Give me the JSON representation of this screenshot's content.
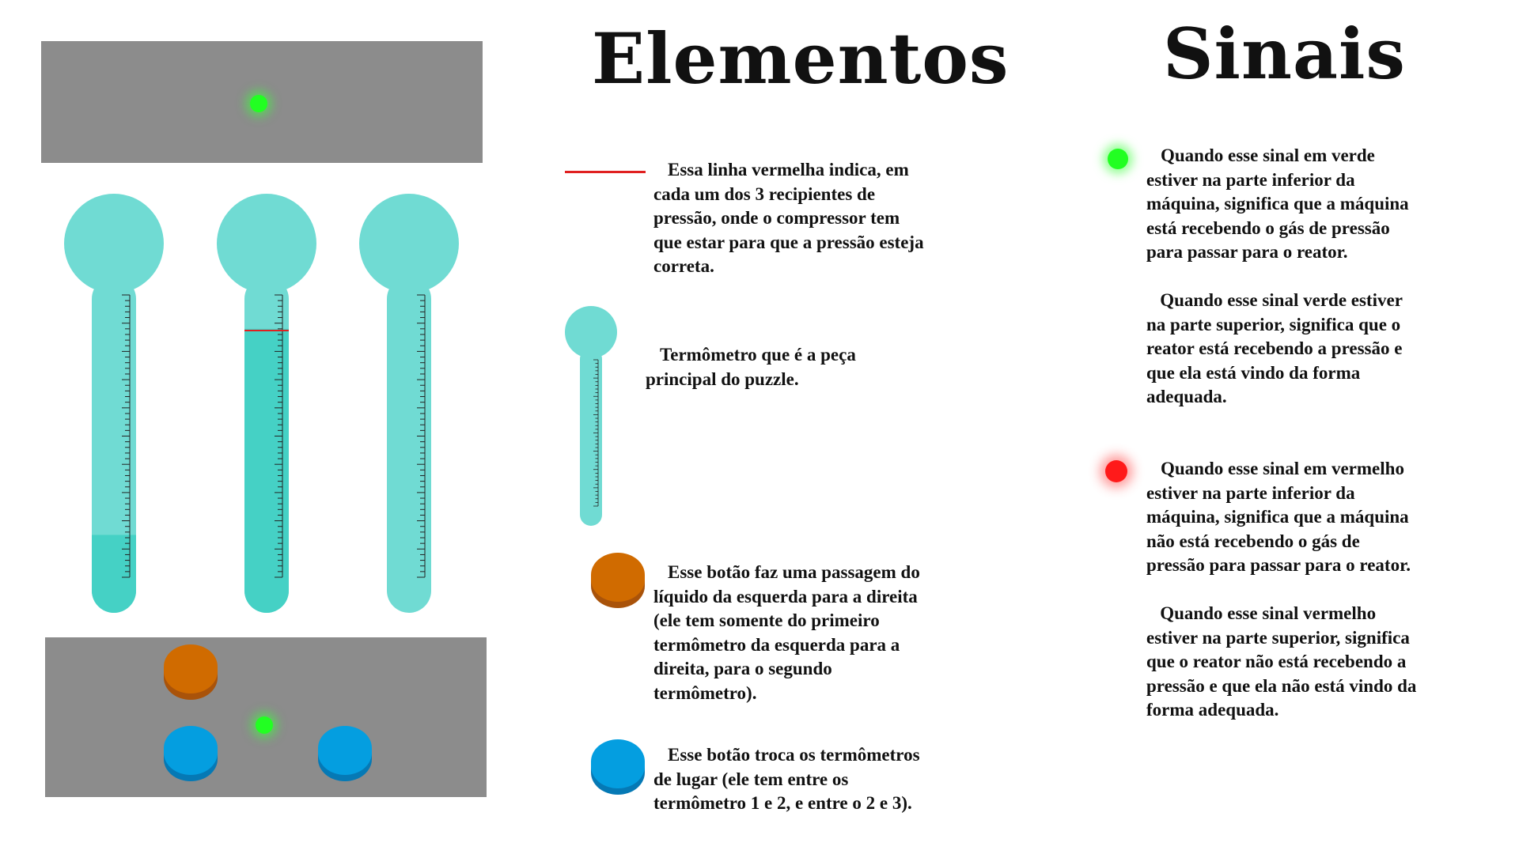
{
  "headings": {
    "elements": "Elementos",
    "signals": "Sinais"
  },
  "colors": {
    "panel": "#8c8c8c",
    "thermometer_light": "#70dbd3",
    "thermometer_liquid": "#45d1c5",
    "target_line": "#e02020",
    "signal_green": "#22ff22",
    "signal_red": "#ff1a1a",
    "button_orange": "#d06b00",
    "button_blue": "#049ee0"
  },
  "machine": {
    "thermometers": [
      {
        "fill_level": 0.15,
        "has_target_line": false
      },
      {
        "fill_level": 0.88,
        "has_target_line": true
      },
      {
        "fill_level": 0.0,
        "has_target_line": false
      }
    ],
    "top_signal": "green",
    "bottom_signal": "green",
    "buttons": [
      "orange",
      "blue",
      "blue"
    ]
  },
  "elements": {
    "red_line_text": "Essa linha vermelha indica, em\ncada um dos 3 recipientes de\npressão, onde o compressor tem\nque estar para que a pressão esteja\ncorreta.",
    "thermometer_text": "Termômetro que é a peça\nprincipal do puzzle.",
    "orange_button_text": "Esse botão faz uma passagem do\nlíquido da esquerda para a direita\n(ele tem somente do primeiro\ntermômetro da esquerda para a\ndireita, para o segundo\ntermômetro).",
    "blue_button_text": "Esse botão troca os termômetros\nde lugar (ele tem entre os\ntermômetro 1 e 2, e entre o 2 e 3)."
  },
  "signals": {
    "green_text": "Quando esse sinal em verde\nestiver na parte inferior da\nmáquina, significa que a máquina\nestá recebendo o gás de pressão\npara passar para o reator.\n\n   Quando esse sinal verde estiver\nna parte superior, significa que o\nreator está recebendo a pressão e\nque ela está vindo da forma\nadequada.",
    "red_text": "Quando esse sinal em vermelho\nestiver na parte inferior da\nmáquina, significa que a máquina\nnão está recebendo o gás de\npressão para passar para o reator.\n\n   Quando esse sinal vermelho\nestiver na parte superior, significa\nque o reator não está recebendo a\npressão e que ela não está vindo da\nforma adequada."
  }
}
